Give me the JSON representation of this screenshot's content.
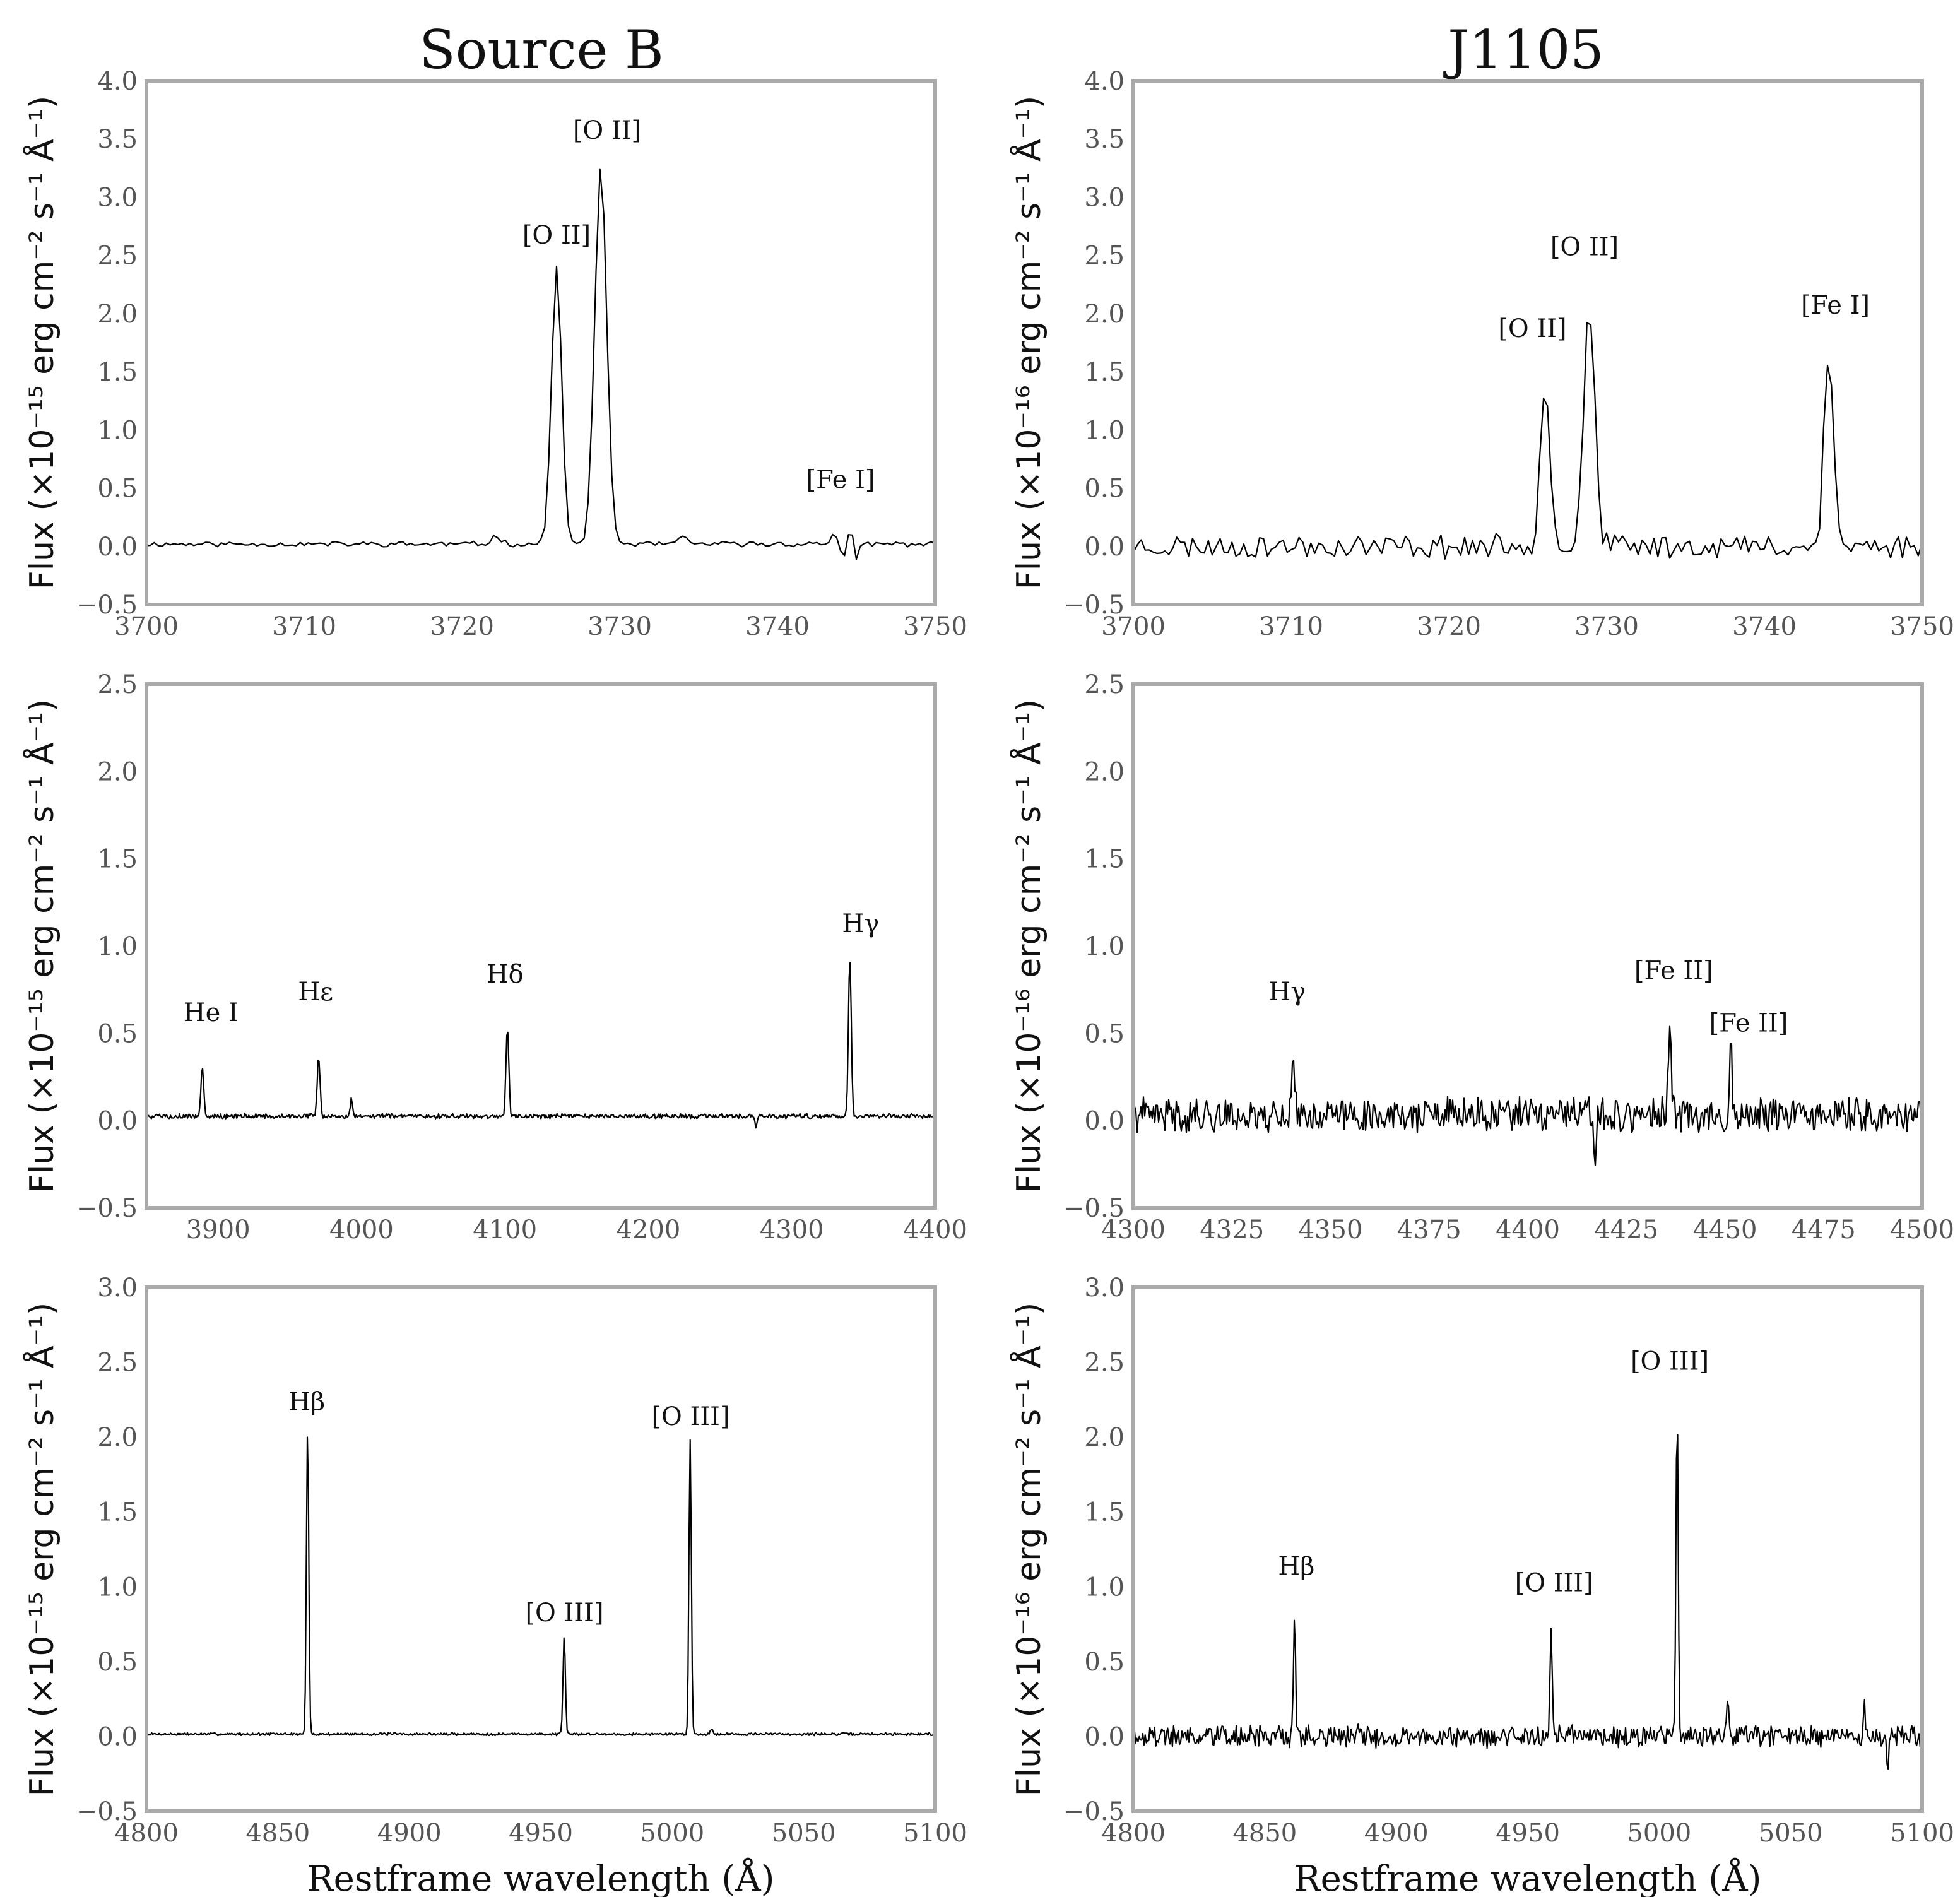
{
  "figure": {
    "column_titles": [
      "Source B",
      "J1105"
    ],
    "xlabel": "Restframe wavelength (Å)"
  },
  "chart_data": [
    {
      "type": "line",
      "row": 0,
      "col": 0,
      "title": "Source B",
      "ylabel": "Flux (×10⁻¹⁵ erg cm⁻² s⁻¹ Å⁻¹)",
      "xlabel": "",
      "xlim": [
        3700,
        3750
      ],
      "ylim": [
        -0.5,
        4.0
      ],
      "xticks": [
        3700,
        3710,
        3720,
        3730,
        3740,
        3750
      ],
      "yticks": [
        -0.5,
        0.0,
        0.5,
        1.0,
        1.5,
        2.0,
        2.5,
        3.0,
        3.5,
        4.0
      ],
      "baseline": 0.02,
      "noise": 0.02,
      "seed": 11,
      "step": 0.25,
      "line_width": 0.2,
      "features": [
        {
          "x": 3722.2,
          "height": 0.07,
          "width": 0.3
        },
        {
          "x": 3726.0,
          "height": 2.38,
          "width": 0.32
        },
        {
          "x": 3728.8,
          "height": 3.22,
          "width": 0.38
        },
        {
          "x": 3734.0,
          "height": 0.05,
          "width": 0.3
        },
        {
          "x": 3743.6,
          "height": 0.1,
          "width": 0.2
        },
        {
          "x": 3744.2,
          "height": -0.15,
          "width": 0.18
        },
        {
          "x": 3744.6,
          "height": 0.15,
          "width": 0.2
        },
        {
          "x": 3745.0,
          "height": -0.17,
          "width": 0.15
        }
      ],
      "annotations": [
        {
          "text": "[O II]",
          "x": 3726.0,
          "y": 2.6
        },
        {
          "text": "[O II]",
          "x": 3729.2,
          "y": 3.5
        },
        {
          "text": "[Fe I]",
          "x": 3744.0,
          "y": 0.5
        }
      ]
    },
    {
      "type": "line",
      "row": 0,
      "col": 1,
      "title": "J1105",
      "ylabel": "Flux (×10⁻¹⁶ erg cm⁻² s⁻¹ Å⁻¹)",
      "xlabel": "",
      "xlim": [
        3700,
        3750
      ],
      "ylim": [
        -0.5,
        4.0
      ],
      "xticks": [
        3700,
        3710,
        3720,
        3730,
        3740,
        3750
      ],
      "yticks": [
        -0.5,
        0.0,
        0.5,
        1.0,
        1.5,
        2.0,
        2.5,
        3.0,
        3.5,
        4.0
      ],
      "baseline": 0.0,
      "noise": 0.09,
      "seed": 23,
      "step": 0.25,
      "line_width": 0.2,
      "features": [
        {
          "x": 3726.1,
          "height": 1.45,
          "width": 0.3
        },
        {
          "x": 3728.9,
          "height": 2.05,
          "width": 0.35
        },
        {
          "x": 3743.9,
          "height": 1.4,
          "width": 0.2
        },
        {
          "x": 3744.3,
          "height": 1.1,
          "width": 0.2
        }
      ],
      "annotations": [
        {
          "text": "[O II]",
          "x": 3725.3,
          "y": 1.8
        },
        {
          "text": "[O II]",
          "x": 3728.6,
          "y": 2.5
        },
        {
          "text": "[Fe I]",
          "x": 3744.5,
          "y": 2.0
        }
      ]
    },
    {
      "type": "line",
      "row": 1,
      "col": 0,
      "title": "",
      "ylabel": "Flux (×10⁻¹⁵ erg cm⁻² s⁻¹ Å⁻¹)",
      "xlabel": "",
      "xlim": [
        3850,
        4400
      ],
      "ylim": [
        -0.5,
        2.5
      ],
      "xticks": [
        3900,
        4000,
        4100,
        4200,
        4300,
        4400
      ],
      "yticks": [
        -0.5,
        0.0,
        0.5,
        1.0,
        1.5,
        2.0,
        2.5
      ],
      "baseline": 0.025,
      "noise": 0.012,
      "seed": 5,
      "step": 0.7,
      "line_width": 0.5,
      "features": [
        {
          "x": 3889.0,
          "height": 0.28,
          "width": 1.0
        },
        {
          "x": 3970.1,
          "height": 0.33,
          "width": 1.0
        },
        {
          "x": 3993.0,
          "height": 0.1,
          "width": 0.7
        },
        {
          "x": 4101.7,
          "height": 0.51,
          "width": 1.0
        },
        {
          "x": 4340.5,
          "height": 0.89,
          "width": 1.0
        },
        {
          "x": 4275.0,
          "height": -0.07,
          "width": 0.7
        }
      ],
      "annotations": [
        {
          "text": "He I",
          "x": 3895,
          "y": 0.57
        },
        {
          "text": "Hε",
          "x": 3968,
          "y": 0.69
        },
        {
          "text": "Hδ",
          "x": 4100,
          "y": 0.79
        },
        {
          "text": "Hγ",
          "x": 4348,
          "y": 1.08
        }
      ]
    },
    {
      "type": "line",
      "row": 1,
      "col": 1,
      "title": "",
      "ylabel": "Flux (×10⁻¹⁶ erg cm⁻² s⁻¹ Å⁻¹)",
      "xlabel": "",
      "xlim": [
        4300,
        4500
      ],
      "ylim": [
        -0.5,
        2.5
      ],
      "xticks": [
        4300,
        4325,
        4350,
        4375,
        4400,
        4425,
        4450,
        4475,
        4500
      ],
      "yticks": [
        -0.5,
        0.0,
        0.5,
        1.0,
        1.5,
        2.0,
        2.5
      ],
      "baseline": 0.03,
      "noise": 0.085,
      "seed": 41,
      "step": 0.32,
      "line_width": 0.3,
      "features": [
        {
          "x": 4340.5,
          "height": 0.38,
          "width": 0.35
        },
        {
          "x": 4436.0,
          "height": 0.52,
          "width": 0.35
        },
        {
          "x": 4451.5,
          "height": 0.37,
          "width": 0.35
        },
        {
          "x": 4417.0,
          "height": -0.28,
          "width": 0.3
        }
      ],
      "annotations": [
        {
          "text": "Hγ",
          "x": 4339,
          "y": 0.69
        },
        {
          "text": "[Fe II]",
          "x": 4437,
          "y": 0.81
        },
        {
          "text": "[Fe II]",
          "x": 4456,
          "y": 0.51
        }
      ]
    },
    {
      "type": "line",
      "row": 2,
      "col": 0,
      "title": "",
      "ylabel": "Flux (×10⁻¹⁵ erg cm⁻² s⁻¹ Å⁻¹)",
      "xlabel": "Restframe wavelength (Å)",
      "xlim": [
        4800,
        5100
      ],
      "ylim": [
        -0.5,
        3.0
      ],
      "xticks": [
        4800,
        4850,
        4900,
        4950,
        5000,
        5050,
        5100
      ],
      "yticks": [
        -0.5,
        0.0,
        0.5,
        1.0,
        1.5,
        2.0,
        2.5,
        3.0
      ],
      "baseline": 0.015,
      "noise": 0.008,
      "seed": 7,
      "step": 0.4,
      "line_width": 0.45,
      "features": [
        {
          "x": 4861.3,
          "height": 2.04,
          "width": 0.45
        },
        {
          "x": 4958.9,
          "height": 0.65,
          "width": 0.45
        },
        {
          "x": 5006.8,
          "height": 1.97,
          "width": 0.45
        },
        {
          "x": 5015.0,
          "height": 0.03,
          "width": 0.5
        }
      ],
      "annotations": [
        {
          "text": "Hβ",
          "x": 4861,
          "y": 2.18
        },
        {
          "text": "[O III]",
          "x": 4959,
          "y": 0.77
        },
        {
          "text": "[O III]",
          "x": 5007,
          "y": 2.08
        }
      ]
    },
    {
      "type": "line",
      "row": 2,
      "col": 1,
      "title": "",
      "ylabel": "Flux (×10⁻¹⁶ erg cm⁻² s⁻¹ Å⁻¹)",
      "xlabel": "Restframe wavelength (Å)",
      "xlim": [
        4800,
        5100
      ],
      "ylim": [
        -0.5,
        3.0
      ],
      "xticks": [
        4800,
        4850,
        4900,
        4950,
        5000,
        5050,
        5100
      ],
      "yticks": [
        -0.5,
        0.0,
        0.5,
        1.0,
        1.5,
        2.0,
        2.5,
        3.0
      ],
      "baseline": 0.0,
      "noise": 0.065,
      "seed": 19,
      "step": 0.45,
      "line_width": 0.4,
      "features": [
        {
          "x": 4861.3,
          "height": 0.83,
          "width": 0.4
        },
        {
          "x": 4958.9,
          "height": 0.8,
          "width": 0.4
        },
        {
          "x": 5006.8,
          "height": 2.32,
          "width": 0.4
        },
        {
          "x": 5026.0,
          "height": 0.23,
          "width": 0.35
        },
        {
          "x": 5078.0,
          "height": 0.28,
          "width": 0.35
        },
        {
          "x": 5087.0,
          "height": -0.27,
          "width": 0.35
        }
      ],
      "annotations": [
        {
          "text": "Hβ",
          "x": 4862,
          "y": 1.08
        },
        {
          "text": "[O III]",
          "x": 4960,
          "y": 0.97
        },
        {
          "text": "[O III]",
          "x": 5004,
          "y": 2.45
        }
      ]
    }
  ]
}
